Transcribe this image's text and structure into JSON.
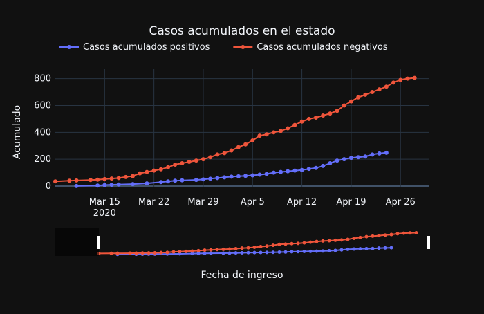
{
  "chart_data": {
    "type": "line",
    "title": "Casos acumulados en el estado",
    "xlabel": "Fecha de ingreso",
    "ylabel": "Acumulado",
    "x_range": [
      "2020-03-08",
      "2020-04-30"
    ],
    "ylim": [
      -5,
      870
    ],
    "y_ticks": [
      0,
      200,
      400,
      600,
      800
    ],
    "x_ticks": [
      {
        "date": "2020-03-15",
        "label": "Mar 15",
        "sublabel": "2020"
      },
      {
        "date": "2020-03-22",
        "label": "Mar 22"
      },
      {
        "date": "2020-03-29",
        "label": "Mar 29"
      },
      {
        "date": "2020-04-05",
        "label": "Apr 5"
      },
      {
        "date": "2020-04-12",
        "label": "Apr 12"
      },
      {
        "date": "2020-04-19",
        "label": "Apr 19"
      },
      {
        "date": "2020-04-26",
        "label": "Apr 26"
      }
    ],
    "legend_position": "top",
    "grid": true,
    "rangeslider": true,
    "colors": {
      "background": "#111111",
      "grid": "#283442",
      "text": "#f2f5fa",
      "slider_bg": "#0b0b0b"
    },
    "series": [
      {
        "name": "Casos acumulados positivos",
        "color": "#636efa",
        "points": [
          [
            "2020-03-11",
            1
          ],
          [
            "2020-03-14",
            4
          ],
          [
            "2020-03-15",
            8
          ],
          [
            "2020-03-16",
            10
          ],
          [
            "2020-03-17",
            12
          ],
          [
            "2020-03-19",
            15
          ],
          [
            "2020-03-21",
            20
          ],
          [
            "2020-03-23",
            30
          ],
          [
            "2020-03-24",
            35
          ],
          [
            "2020-03-25",
            40
          ],
          [
            "2020-03-26",
            43
          ],
          [
            "2020-03-28",
            46
          ],
          [
            "2020-03-29",
            50
          ],
          [
            "2020-03-30",
            55
          ],
          [
            "2020-03-31",
            60
          ],
          [
            "2020-04-01",
            65
          ],
          [
            "2020-04-02",
            70
          ],
          [
            "2020-04-03",
            73
          ],
          [
            "2020-04-04",
            76
          ],
          [
            "2020-04-05",
            80
          ],
          [
            "2020-04-06",
            85
          ],
          [
            "2020-04-07",
            90
          ],
          [
            "2020-04-08",
            100
          ],
          [
            "2020-04-09",
            105
          ],
          [
            "2020-04-10",
            110
          ],
          [
            "2020-04-11",
            115
          ],
          [
            "2020-04-12",
            120
          ],
          [
            "2020-04-13",
            128
          ],
          [
            "2020-04-14",
            135
          ],
          [
            "2020-04-15",
            150
          ],
          [
            "2020-04-16",
            170
          ],
          [
            "2020-04-17",
            190
          ],
          [
            "2020-04-18",
            200
          ],
          [
            "2020-04-19",
            210
          ],
          [
            "2020-04-20",
            215
          ],
          [
            "2020-04-21",
            220
          ],
          [
            "2020-04-22",
            235
          ],
          [
            "2020-04-23",
            243
          ],
          [
            "2020-04-24",
            248
          ]
        ]
      },
      {
        "name": "Casos acumulados negativos",
        "color": "#ef553b",
        "points": [
          [
            "2020-03-08",
            35
          ],
          [
            "2020-03-10",
            40
          ],
          [
            "2020-03-11",
            42
          ],
          [
            "2020-03-13",
            45
          ],
          [
            "2020-03-14",
            48
          ],
          [
            "2020-03-15",
            52
          ],
          [
            "2020-03-16",
            56
          ],
          [
            "2020-03-17",
            60
          ],
          [
            "2020-03-18",
            68
          ],
          [
            "2020-03-19",
            75
          ],
          [
            "2020-03-20",
            95
          ],
          [
            "2020-03-21",
            105
          ],
          [
            "2020-03-22",
            115
          ],
          [
            "2020-03-23",
            125
          ],
          [
            "2020-03-24",
            140
          ],
          [
            "2020-03-25",
            160
          ],
          [
            "2020-03-26",
            170
          ],
          [
            "2020-03-27",
            180
          ],
          [
            "2020-03-28",
            190
          ],
          [
            "2020-03-29",
            200
          ],
          [
            "2020-03-30",
            215
          ],
          [
            "2020-03-31",
            235
          ],
          [
            "2020-04-01",
            245
          ],
          [
            "2020-04-02",
            265
          ],
          [
            "2020-04-03",
            290
          ],
          [
            "2020-04-04",
            310
          ],
          [
            "2020-04-05",
            340
          ],
          [
            "2020-04-06",
            375
          ],
          [
            "2020-04-07",
            385
          ],
          [
            "2020-04-08",
            400
          ],
          [
            "2020-04-09",
            410
          ],
          [
            "2020-04-10",
            430
          ],
          [
            "2020-04-11",
            455
          ],
          [
            "2020-04-12",
            480
          ],
          [
            "2020-04-13",
            500
          ],
          [
            "2020-04-14",
            510
          ],
          [
            "2020-04-15",
            525
          ],
          [
            "2020-04-16",
            540
          ],
          [
            "2020-04-17",
            560
          ],
          [
            "2020-04-18",
            600
          ],
          [
            "2020-04-19",
            630
          ],
          [
            "2020-04-20",
            660
          ],
          [
            "2020-04-21",
            680
          ],
          [
            "2020-04-22",
            700
          ],
          [
            "2020-04-23",
            720
          ],
          [
            "2020-04-24",
            740
          ],
          [
            "2020-04-25",
            770
          ],
          [
            "2020-04-26",
            790
          ],
          [
            "2020-04-27",
            800
          ],
          [
            "2020-04-28",
            805
          ]
        ]
      }
    ]
  }
}
